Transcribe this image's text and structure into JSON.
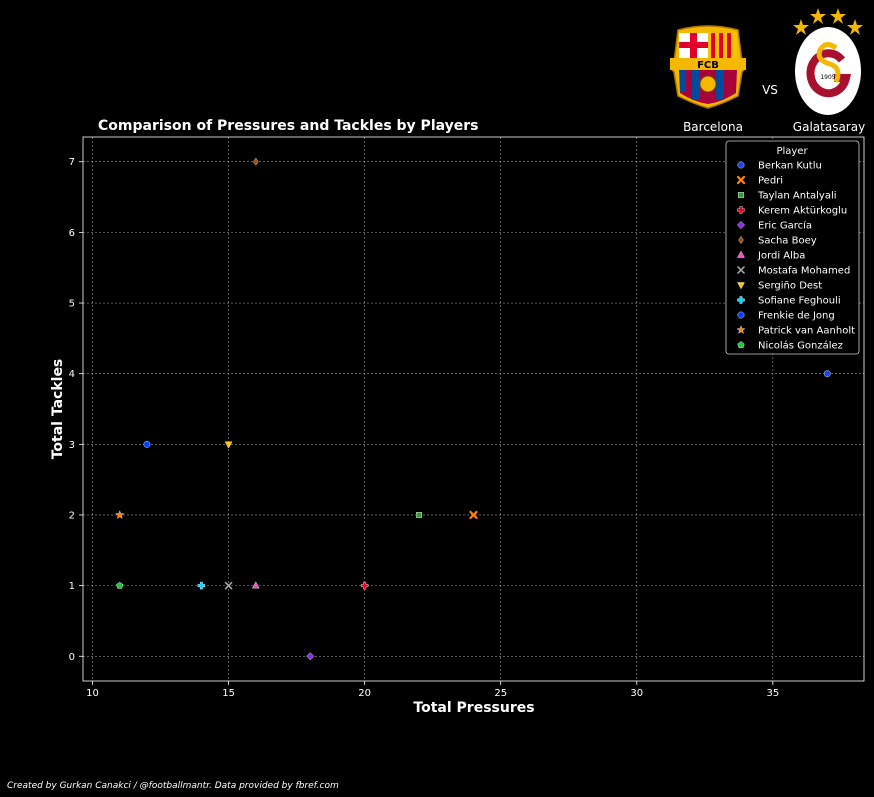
{
  "chart_data": {
    "type": "scatter",
    "title": "Comparison of Pressures and Tackles by Players",
    "xlabel": "Total Pressures",
    "ylabel": "Total Tackles",
    "xlim": [
      9.65,
      38.35
    ],
    "ylim": [
      -0.35,
      7.35
    ],
    "x_ticks": [
      10,
      15,
      20,
      25,
      30,
      35
    ],
    "y_ticks": [
      0,
      1,
      2,
      3,
      4,
      5,
      6,
      7
    ],
    "grid": true,
    "legend_title": "Player",
    "legend_position": "top-right",
    "series": [
      {
        "name": "Berkan Kutlu",
        "color": "#1a44e8",
        "marker": "circle",
        "x": 37,
        "y": 4
      },
      {
        "name": "Pedri",
        "color": "#ff7f0e",
        "marker": "x",
        "x": 24,
        "y": 2
      },
      {
        "name": "Taylan Antalyali",
        "color": "#2ca02c",
        "marker": "square",
        "x": 22,
        "y": 2
      },
      {
        "name": "Kerem Aktürkoglu",
        "color": "#e8001e",
        "marker": "plus",
        "x": 20,
        "y": 1
      },
      {
        "name": "Eric García",
        "color": "#8b2be2",
        "marker": "diamond",
        "x": 18,
        "y": 0
      },
      {
        "name": "Sacha Boey",
        "color": "#9f4800",
        "marker": "diamond-thin",
        "x": 16,
        "y": 7
      },
      {
        "name": "Jordi Alba",
        "color": "#f14cc1",
        "marker": "triangle-up",
        "x": 16,
        "y": 1
      },
      {
        "name": "Mostafa Mohamed",
        "color": "#a3a3a3",
        "marker": "x-thin",
        "x": 15,
        "y": 1
      },
      {
        "name": "Sergiño Dest",
        "color": "#ffc400",
        "marker": "triangle-down",
        "x": 15,
        "y": 3
      },
      {
        "name": "Sofiane Feghouli",
        "color": "#00d7ff",
        "marker": "plus",
        "x": 14,
        "y": 1
      },
      {
        "name": "Frenkie de Jong",
        "color": "#023eff",
        "marker": "circle",
        "x": 12,
        "y": 3
      },
      {
        "name": "Patrick van Aanholt",
        "color": "#ff7c00",
        "marker": "star",
        "x": 11,
        "y": 2
      },
      {
        "name": "Nicolás González",
        "color": "#1ac938",
        "marker": "pentagon",
        "x": 11,
        "y": 1
      }
    ]
  },
  "header": {
    "team_home": "Barcelona",
    "team_away": "Galatasaray",
    "vs_label": "VS",
    "home_crest_text": "FCB",
    "away_crest_text": "1905"
  },
  "footer": {
    "credit": "Created by Gurkan Canakci / @footballmantr. Data provided by fbref.com"
  }
}
